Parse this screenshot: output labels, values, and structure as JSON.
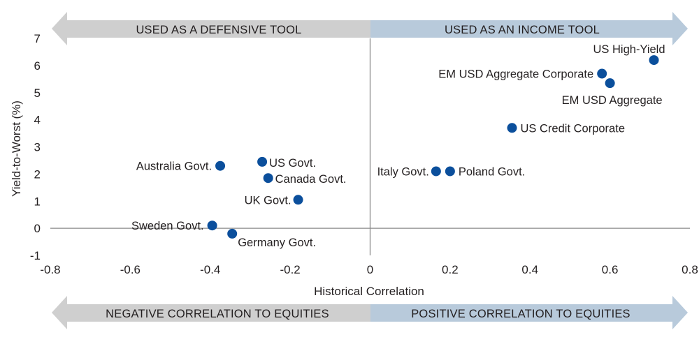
{
  "chart_data": {
    "type": "scatter",
    "xlabel": "Historical Correlation",
    "ylabel": "Yield-to-Worst (%)",
    "xlim": [
      -0.8,
      0.8
    ],
    "ylim": [
      -1,
      7
    ],
    "xticks": [
      "-0.8",
      "-0.6",
      "-0.4",
      "-0.2",
      "0",
      "0.2",
      "0.4",
      "0.6",
      "0.8"
    ],
    "yticks": [
      "-1",
      "0",
      "1",
      "2",
      "3",
      "4",
      "5",
      "6",
      "7"
    ],
    "grid": false,
    "marker_color": "#0b4f9c",
    "points": [
      {
        "label": "US High-Yield",
        "x": 0.71,
        "y": 6.2
      },
      {
        "label": "EM USD Aggregate Corporate",
        "x": 0.58,
        "y": 5.7
      },
      {
        "label": "EM USD Aggregate",
        "x": 0.6,
        "y": 5.35
      },
      {
        "label": "US Credit Corporate",
        "x": 0.355,
        "y": 3.7
      },
      {
        "label": "Italy Govt.",
        "x": 0.165,
        "y": 2.1
      },
      {
        "label": "Poland Govt.",
        "x": 0.2,
        "y": 2.1
      },
      {
        "label": "Australia Govt.",
        "x": -0.375,
        "y": 2.3
      },
      {
        "label": "US Govt.",
        "x": -0.27,
        "y": 2.45
      },
      {
        "label": "Canada Govt.",
        "x": -0.255,
        "y": 1.85
      },
      {
        "label": "UK Govt.",
        "x": -0.18,
        "y": 1.05
      },
      {
        "label": "Sweden Govt.",
        "x": -0.395,
        "y": 0.1
      },
      {
        "label": "Germany Govt.",
        "x": -0.345,
        "y": -0.2
      }
    ]
  },
  "bands": {
    "top_left": "USED AS A DEFENSIVE TOOL",
    "top_right": "USED AS AN INCOME TOOL",
    "bottom_left": "NEGATIVE CORRELATION TO EQUITIES",
    "bottom_right": "POSITIVE CORRELATION TO EQUITIES"
  },
  "colors": {
    "band_left": "#cfcfcf",
    "band_right": "#b8cadb",
    "axis": "#8a8a8a",
    "marker": "#0b4f9c"
  }
}
